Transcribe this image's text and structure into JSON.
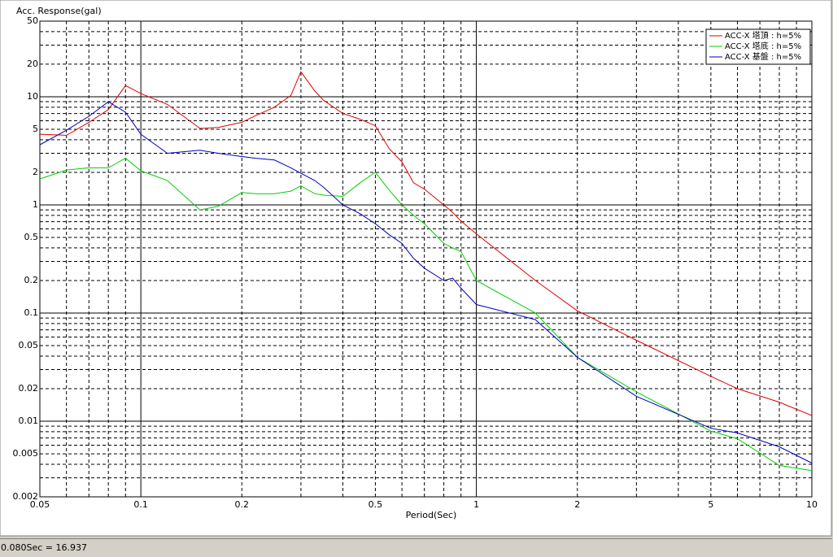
{
  "chart_data": {
    "type": "line",
    "ylabel": "Acc. Response(gal)",
    "xlabel": "Period(Sec)",
    "x": [
      0.05,
      0.06,
      0.07,
      0.08,
      0.09,
      0.1,
      0.12,
      0.15,
      0.17,
      0.2,
      0.22,
      0.25,
      0.28,
      0.3,
      0.33,
      0.35,
      0.4,
      0.45,
      0.5,
      0.55,
      0.6,
      0.65,
      0.7,
      0.8,
      0.85,
      0.9,
      1,
      1.5,
      2,
      3,
      5,
      6,
      8,
      10
    ],
    "series": [
      {
        "name": "ACC-X 塔頂 : h=5%",
        "color": "#e00000",
        "values": [
          4.5,
          4.4,
          5.8,
          7.6,
          12.7,
          10.7,
          8.5,
          5.1,
          5.2,
          5.8,
          6.7,
          8,
          10.3,
          17,
          11.3,
          9.3,
          7,
          6.2,
          5.4,
          3.3,
          2.5,
          1.6,
          1.4,
          1,
          0.85,
          0.71,
          0.54,
          0.2,
          0.105,
          0.056,
          0.026,
          0.02,
          0.015,
          0.0113
        ]
      },
      {
        "name": "ACC-X 塔底 : h=5%",
        "color": "#00d000",
        "values": [
          1.74,
          2.1,
          2.2,
          2.2,
          2.7,
          2.07,
          1.68,
          0.9,
          0.97,
          1.3,
          1.27,
          1.27,
          1.34,
          1.5,
          1.27,
          1.23,
          1.2,
          1.6,
          2.0,
          1.37,
          1,
          0.8,
          0.67,
          0.44,
          0.4,
          0.37,
          0.2,
          0.1,
          0.039,
          0.0187,
          0.0081,
          0.0069,
          0.0039,
          0.0035
        ]
      },
      {
        "name": "ACC-X 基盤 : h=5%",
        "color": "#0000c0",
        "values": [
          3.6,
          4.9,
          6.6,
          9,
          7.2,
          4.5,
          3.0,
          3.2,
          3.0,
          2.8,
          2.7,
          2.6,
          2.2,
          1.96,
          1.68,
          1.46,
          1.0,
          0.83,
          0.67,
          0.53,
          0.44,
          0.32,
          0.26,
          0.2,
          0.21,
          0.17,
          0.12,
          0.087,
          0.039,
          0.017,
          0.0086,
          0.0078,
          0.0058,
          0.0041
        ]
      }
    ],
    "xlim": [
      0.05,
      10
    ],
    "ylim": [
      0.002,
      50
    ],
    "xticks": [
      0.05,
      0.1,
      0.2,
      0.5,
      1,
      2,
      5,
      10
    ],
    "yticks": [
      50,
      20,
      10,
      5,
      2,
      1,
      0.5,
      0.2,
      0.1,
      0.05,
      0.02,
      0.01,
      0.005,
      0.002
    ],
    "xminor": [
      0.06,
      0.07,
      0.08,
      0.09,
      0.3,
      0.4,
      0.6,
      0.7,
      0.8,
      0.9,
      3,
      4,
      6,
      7,
      8,
      9
    ],
    "yminor": [
      0.003,
      0.004,
      0.006,
      0.007,
      0.008,
      0.009,
      0.03,
      0.04,
      0.06,
      0.07,
      0.08,
      0.09,
      0.3,
      0.4,
      0.6,
      0.7,
      0.8,
      0.9,
      3,
      4,
      6,
      7,
      8,
      9,
      30,
      40
    ],
    "log_x": true,
    "log_y": true,
    "grid": true,
    "legend": "upper right"
  },
  "status_bar": "0.080Sec = 16.937"
}
